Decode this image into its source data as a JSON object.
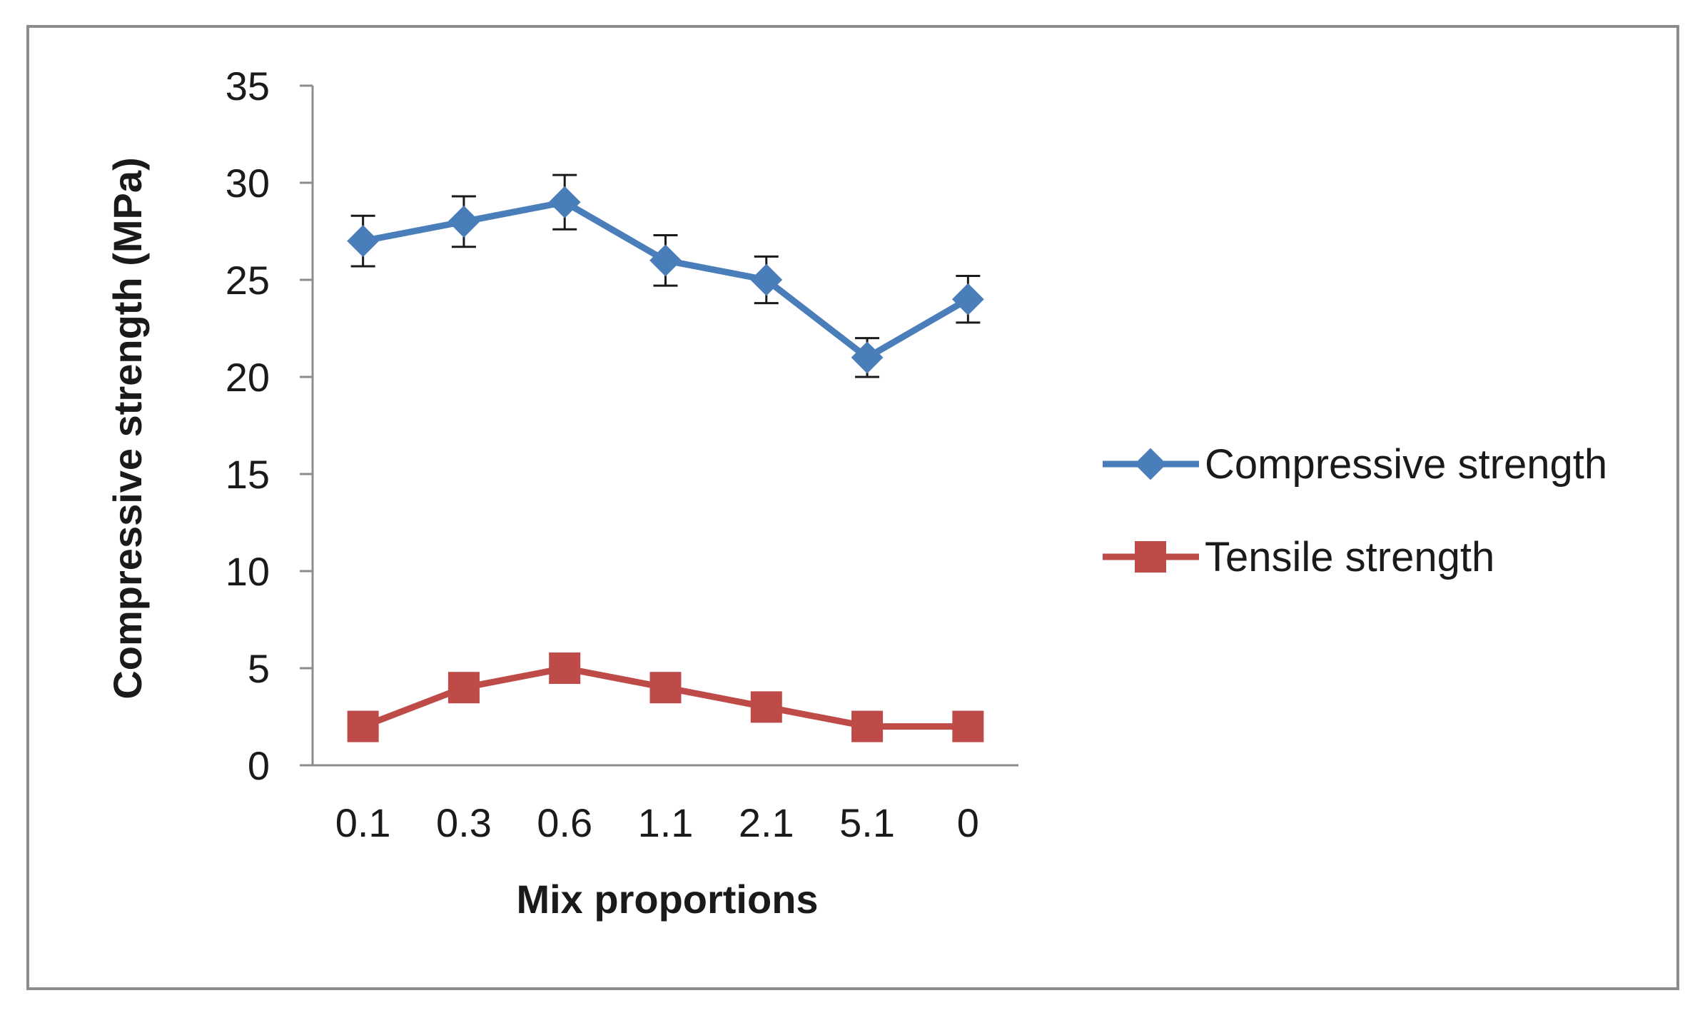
{
  "chart_data": {
    "type": "line",
    "title": "",
    "xlabel": "Mix proportions",
    "ylabel": "Compressive strength (MPa)",
    "categories": [
      "0.1",
      "0.3",
      "0.6",
      "1.1",
      "2.1",
      "5.1",
      "0"
    ],
    "ylim": [
      0,
      35
    ],
    "yticks": [
      0,
      5,
      10,
      15,
      20,
      25,
      30,
      35
    ],
    "grid": false,
    "legend_position": "right",
    "series": [
      {
        "name": "Compressive strength",
        "color": "#4a7ebb",
        "marker": "diamond",
        "values": [
          27,
          28,
          29,
          26,
          25,
          21,
          24
        ],
        "error": [
          1.3,
          1.3,
          1.4,
          1.3,
          1.2,
          1.0,
          1.2
        ]
      },
      {
        "name": "Tensile strength",
        "color": "#be4b48",
        "marker": "square",
        "values": [
          2,
          4,
          5,
          4,
          3,
          2,
          2
        ]
      }
    ]
  }
}
